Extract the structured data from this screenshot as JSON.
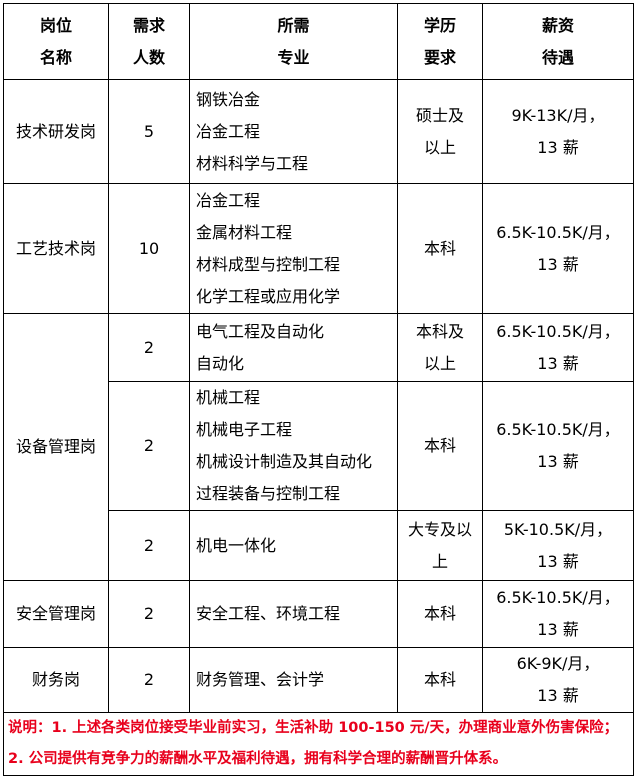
{
  "header": {
    "position": [
      "岗位",
      "名称"
    ],
    "count": [
      "需求",
      "人数"
    ],
    "major": [
      "所需",
      "专业"
    ],
    "education": [
      "学历",
      "要求"
    ],
    "salary": [
      "薪资",
      "待遇"
    ]
  },
  "rows": [
    {
      "position": "技术研发岗",
      "count": "5",
      "majors": [
        "钢铁冶金",
        "冶金工程",
        "材料科学与工程"
      ],
      "education": [
        "硕士及",
        "以上"
      ],
      "salary": [
        "9K-13K/月，",
        "13 薪"
      ]
    },
    {
      "position": "工艺技术岗",
      "count": "10",
      "majors": [
        "冶金工程",
        "金属材料工程",
        "材料成型与控制工程",
        "化学工程或应用化学"
      ],
      "education": [
        "本科"
      ],
      "salary": [
        "6.5K-10.5K/月，",
        "13 薪"
      ]
    },
    {
      "position": "设备管理岗",
      "count": "2",
      "majors": [
        "电气工程及自动化",
        "自动化"
      ],
      "education": [
        "本科及",
        "以上"
      ],
      "salary": [
        "6.5K-10.5K/月，",
        "13 薪"
      ]
    },
    {
      "count": "2",
      "majors": [
        "机械工程",
        "机械电子工程",
        "机械设计制造及其自动化",
        "过程装备与控制工程"
      ],
      "education": [
        "本科"
      ],
      "salary": [
        "6.5K-10.5K/月，",
        "13 薪"
      ]
    },
    {
      "count": "2",
      "majors": [
        "机电一体化"
      ],
      "education": [
        "大专及以",
        "上"
      ],
      "salary": [
        "5K-10.5K/月，",
        "13 薪"
      ]
    },
    {
      "position": "安全管理岗",
      "count": "2",
      "majors": [
        "安全工程、环境工程"
      ],
      "education": [
        "本科"
      ],
      "salary": [
        "6.5K-10.5K/月，",
        "13 薪"
      ]
    },
    {
      "position": "财务岗",
      "count": "2",
      "majors": [
        "财务管理、会计学"
      ],
      "education": [
        "本科"
      ],
      "salary": [
        "6K-9K/月，",
        "13 薪"
      ]
    }
  ],
  "note": "说明：1. 上述各类岗位接受毕业前实习，生活补助 100-150 元/天，办理商业意外伤害保险；2. 公司提供有竞争力的薪酬水平及福利待遇，拥有科学合理的薪酬晋升体系。",
  "colors": {
    "note": "#e8001c"
  }
}
